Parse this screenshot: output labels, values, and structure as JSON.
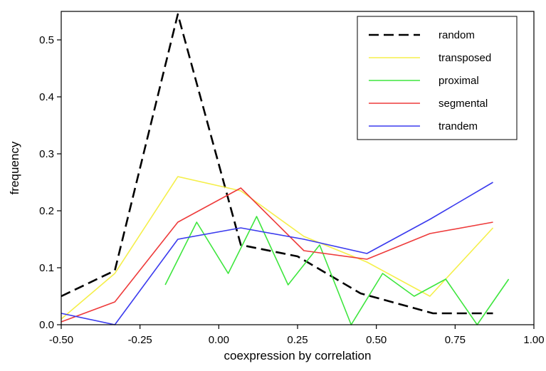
{
  "chart_data": {
    "type": "line",
    "xlabel": "coexpression by correlation",
    "ylabel": "frequency",
    "xlim": [
      -0.5,
      1.0
    ],
    "ylim": [
      0.0,
      0.55
    ],
    "xticks": [
      "-0.50",
      "-0.25",
      "0.00",
      "0.25",
      "0.50",
      "0.75",
      "1.00"
    ],
    "yticks": [
      "0.0",
      "0.1",
      "0.2",
      "0.3",
      "0.4",
      "0.5"
    ],
    "xtick_values": [
      -0.5,
      -0.25,
      0.0,
      0.25,
      0.5,
      0.75,
      1.0
    ],
    "ytick_values": [
      0.0,
      0.1,
      0.2,
      0.3,
      0.4,
      0.5
    ],
    "grid": false,
    "legend_position": "top-right",
    "series": [
      {
        "name": "random",
        "color": "#000000",
        "dash": true,
        "points": [
          [
            -0.5,
            0.05
          ],
          [
            -0.33,
            0.095
          ],
          [
            -0.13,
            0.545
          ],
          [
            0.07,
            0.14
          ],
          [
            0.25,
            0.12
          ],
          [
            0.45,
            0.055
          ],
          [
            0.68,
            0.02
          ],
          [
            0.87,
            0.02
          ]
        ]
      },
      {
        "name": "transposed",
        "color": "#f5ef4a",
        "dash": false,
        "points": [
          [
            -0.5,
            0.01
          ],
          [
            -0.33,
            0.09
          ],
          [
            -0.13,
            0.26
          ],
          [
            0.07,
            0.235
          ],
          [
            0.27,
            0.155
          ],
          [
            0.47,
            0.11
          ],
          [
            0.67,
            0.05
          ],
          [
            0.87,
            0.17
          ]
        ]
      },
      {
        "name": "proximal",
        "color": "#3ee63e",
        "dash": false,
        "points": [
          [
            -0.17,
            0.07
          ],
          [
            -0.07,
            0.18
          ],
          [
            0.03,
            0.09
          ],
          [
            0.12,
            0.19
          ],
          [
            0.22,
            0.07
          ],
          [
            0.32,
            0.14
          ],
          [
            0.42,
            0.0
          ],
          [
            0.52,
            0.09
          ],
          [
            0.62,
            0.05
          ],
          [
            0.72,
            0.08
          ],
          [
            0.82,
            0.0
          ],
          [
            0.92,
            0.08
          ]
        ]
      },
      {
        "name": "segmental",
        "color": "#ee3b3b",
        "dash": false,
        "points": [
          [
            -0.5,
            0.005
          ],
          [
            -0.33,
            0.04
          ],
          [
            -0.13,
            0.18
          ],
          [
            0.07,
            0.24
          ],
          [
            0.27,
            0.13
          ],
          [
            0.47,
            0.115
          ],
          [
            0.67,
            0.16
          ],
          [
            0.87,
            0.18
          ]
        ]
      },
      {
        "name": "trandem",
        "color": "#3b3bee",
        "dash": false,
        "points": [
          [
            -0.5,
            0.02
          ],
          [
            -0.33,
            0.0
          ],
          [
            -0.13,
            0.15
          ],
          [
            0.07,
            0.17
          ],
          [
            0.27,
            0.15
          ],
          [
            0.47,
            0.125
          ],
          [
            0.67,
            0.185
          ],
          [
            0.87,
            0.25
          ]
        ]
      }
    ]
  }
}
